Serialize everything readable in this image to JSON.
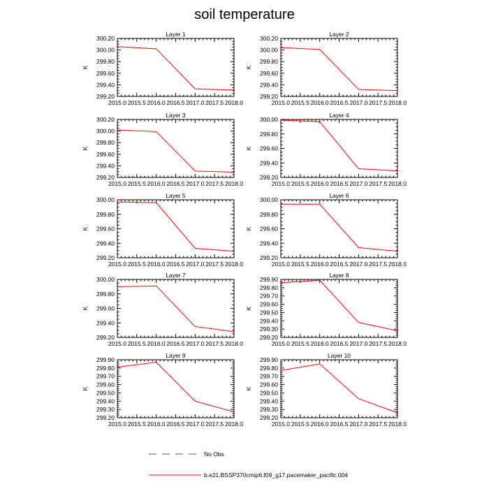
{
  "chart_data": {
    "type": "line",
    "title": "soil temperature",
    "xlabel": "",
    "ylabel": "K",
    "xlim": [
      2015.0,
      2018.0
    ],
    "x_ticks": [
      "2015.0",
      "2015.5",
      "2016.0",
      "2016.5",
      "2017.0",
      "2017.5",
      "2018.0"
    ],
    "x": [
      2015.0,
      2016.0,
      2017.0,
      2018.0
    ],
    "series_name": "b.e21.BSSP370cmip6.f09_g17.pacemaker_pacific.004",
    "series_color": "#ff0000",
    "panels": [
      {
        "title": "Layer 1",
        "ylim": [
          299.2,
          300.2
        ],
        "y_ticks": [
          "299.20",
          "299.40",
          "299.60",
          "299.80",
          "300.00",
          "300.20"
        ],
        "values": [
          300.06,
          300.02,
          299.33,
          299.31
        ]
      },
      {
        "title": "Layer 2",
        "ylim": [
          299.2,
          300.2
        ],
        "y_ticks": [
          "299.20",
          "299.40",
          "299.60",
          "299.80",
          "300.00",
          "300.20"
        ],
        "values": [
          300.04,
          300.01,
          299.32,
          299.3
        ]
      },
      {
        "title": "Layer 3",
        "ylim": [
          299.2,
          300.2
        ],
        "y_ticks": [
          "299.20",
          "299.40",
          "299.60",
          "299.80",
          "300.00",
          "300.20"
        ],
        "values": [
          300.02,
          299.99,
          299.31,
          299.29
        ]
      },
      {
        "title": "Layer 4",
        "ylim": [
          299.2,
          300.0
        ],
        "y_ticks": [
          "299.20",
          "299.40",
          "299.60",
          "299.80",
          "300.00"
        ],
        "values": [
          299.99,
          299.97,
          299.32,
          299.29
        ]
      },
      {
        "title": "Layer 5",
        "ylim": [
          299.2,
          300.0
        ],
        "y_ticks": [
          "299.20",
          "299.40",
          "299.60",
          "299.80",
          "300.00"
        ],
        "values": [
          299.97,
          299.96,
          299.33,
          299.29
        ]
      },
      {
        "title": "Layer 6",
        "ylim": [
          299.2,
          300.0
        ],
        "y_ticks": [
          "299.20",
          "299.40",
          "299.60",
          "299.80",
          "300.00"
        ],
        "values": [
          299.94,
          299.94,
          299.34,
          299.29
        ]
      },
      {
        "title": "Layer 7",
        "ylim": [
          299.2,
          300.0
        ],
        "y_ticks": [
          "299.20",
          "299.40",
          "299.60",
          "299.80",
          "300.00"
        ],
        "values": [
          299.9,
          299.91,
          299.35,
          299.28
        ]
      },
      {
        "title": "Layer 8",
        "ylim": [
          299.2,
          299.9
        ],
        "y_ticks": [
          "299.20",
          "299.30",
          "299.40",
          "299.50",
          "299.60",
          "299.70",
          "299.80",
          "299.90"
        ],
        "values": [
          299.86,
          299.89,
          299.38,
          299.28
        ]
      },
      {
        "title": "Layer 9",
        "ylim": [
          299.2,
          299.9
        ],
        "y_ticks": [
          "299.20",
          "299.30",
          "299.40",
          "299.50",
          "299.60",
          "299.70",
          "299.80",
          "299.90"
        ],
        "values": [
          299.81,
          299.87,
          299.4,
          299.27
        ]
      },
      {
        "title": "Layer 10",
        "ylim": [
          299.2,
          299.9
        ],
        "y_ticks": [
          "299.20",
          "299.30",
          "299.40",
          "299.50",
          "299.60",
          "299.70",
          "299.80",
          "299.90"
        ],
        "values": [
          299.77,
          299.85,
          299.43,
          299.26
        ]
      }
    ],
    "legend": [
      {
        "label": "No Obs",
        "style": "dashed",
        "color": "#4b4b9a"
      },
      {
        "label": "b.e21.BSSP370cmip6.f09_g17.pacemaker_pacific.004",
        "style": "solid",
        "color": "#ff0000"
      }
    ],
    "legend_position": "bottom-center"
  }
}
